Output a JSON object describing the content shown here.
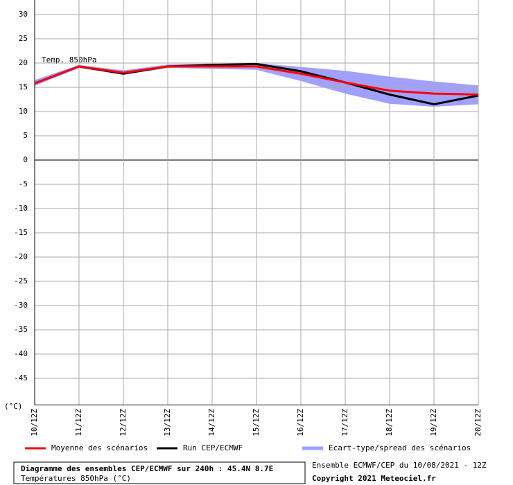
{
  "chart_data": {
    "type": "line",
    "annotation": "Temp. 850hPa",
    "y_unit_label": "(°C)",
    "categories": [
      "10/12Z",
      "11/12Z",
      "12/12Z",
      "13/12Z",
      "14/12Z",
      "15/12Z",
      "16/12Z",
      "17/12Z",
      "18/12Z",
      "19/12Z",
      "20/12Z"
    ],
    "series": [
      {
        "name": "Moyenne des scénarios",
        "color": "#ff0000",
        "values": [
          15.8,
          19.3,
          18.0,
          19.3,
          19.3,
          19.3,
          17.8,
          16.0,
          14.3,
          13.7,
          13.5
        ]
      },
      {
        "name": "Run CEP/ECMWF",
        "color": "#000000",
        "values": [
          15.8,
          19.3,
          17.8,
          19.3,
          19.6,
          19.8,
          18.3,
          16.0,
          13.5,
          11.5,
          13.3
        ]
      }
    ],
    "spread": {
      "name": "Ecart-type/spread des scénarios",
      "color": "#a0a0ff",
      "upper": [
        16.5,
        19.6,
        18.5,
        19.7,
        19.9,
        20.0,
        19.2,
        18.4,
        17.2,
        16.2,
        15.4
      ],
      "lower": [
        15.3,
        19.0,
        17.6,
        19.0,
        18.8,
        18.6,
        16.3,
        13.7,
        11.6,
        11.0,
        11.5
      ]
    },
    "ylim": [
      -50.5,
      33
    ],
    "yticks": [
      30,
      25,
      20,
      15,
      10,
      5,
      0,
      -5,
      -10,
      -15,
      -20,
      -25,
      -30,
      -35,
      -40,
      -45
    ],
    "grid": true,
    "footer": {
      "title": "Diagramme des ensembles CEP/ECMWF sur 240h : 45.4N 8.7E",
      "subtitle": "Températures 850hPa (°C)",
      "run_info": "Ensemble ECMWF/CEP du 10/08/2021 - 12Z",
      "copyright": "Copyright 2021 Meteociel.fr"
    }
  }
}
